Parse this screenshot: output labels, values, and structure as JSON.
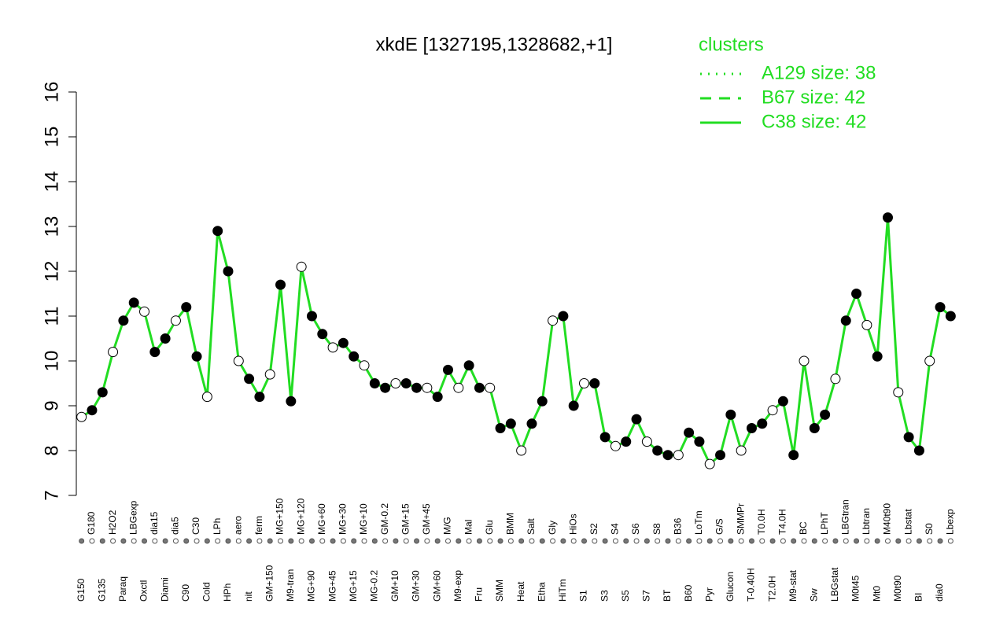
{
  "chart_data": {
    "type": "line",
    "title": "xkdE [1327195,1328682,+1]",
    "categories": [
      "G150",
      "G180",
      "G135",
      "H2O2",
      "Paraq",
      "LBGexp",
      "Oxctl",
      "dia15",
      "Diami",
      "dia5",
      "C90",
      "C30",
      "Cold",
      "LPh",
      "HPh",
      "aero",
      "nit",
      "ferm",
      "GM+150",
      "MG+150",
      "M9-tran",
      "MG+120",
      "MG+90",
      "MG+60",
      "MG+45",
      "MG+30",
      "MG+15",
      "MG+10",
      "MG-0.2",
      "GM-0.2",
      "GM+10",
      "GM+15",
      "GM+30",
      "GM+45",
      "GM+60",
      "M/G",
      "M9-exp",
      "Mal",
      "Fru",
      "Glu",
      "SMM",
      "BMM",
      "Heat",
      "Salt",
      "Etha",
      "Gly",
      "HiTm",
      "HiOs",
      "S1",
      "S2",
      "S3",
      "S4",
      "S5",
      "S6",
      "S7",
      "S8",
      "BT",
      "B36",
      "B60",
      "LoTm",
      "Pyr",
      "G/S",
      "Glucon",
      "SMMPr",
      "T-0.40H",
      "T0.0H",
      "T2.0H",
      "T4.0H",
      "M9-stat",
      "BC",
      "Sw",
      "LPhT",
      "LBGstat",
      "LBGtran",
      "M0t45",
      "Lbtran",
      "Mt0",
      "M40t90",
      "M0t90",
      "Lbstat",
      "BI",
      "S0",
      "dia0",
      "Lbexp"
    ],
    "series": [
      {
        "name": "C38 size: 42",
        "color": "#22dd22",
        "values": [
          8.75,
          8.9,
          9.3,
          10.2,
          10.9,
          11.3,
          11.1,
          10.2,
          10.5,
          10.9,
          11.2,
          10.1,
          9.2,
          12.9,
          12.0,
          10.0,
          9.6,
          9.2,
          9.7,
          11.7,
          9.1,
          12.1,
          11.0,
          10.6,
          10.3,
          10.4,
          10.1,
          9.9,
          9.5,
          9.4,
          9.5,
          9.5,
          9.4,
          9.4,
          9.2,
          9.8,
          9.4,
          9.9,
          9.4,
          9.4,
          8.5,
          8.6,
          8.0,
          8.6,
          9.1,
          10.9,
          11.0,
          9.0,
          9.5,
          9.5,
          8.3,
          8.1,
          8.2,
          8.7,
          8.2,
          8.0,
          7.9,
          7.9,
          8.4,
          8.2,
          7.7,
          7.9,
          8.8,
          8.0,
          8.5,
          8.6,
          8.9,
          9.1,
          7.9,
          10.0,
          8.5,
          8.8,
          9.6,
          10.9,
          11.5,
          10.8,
          10.1,
          13.2,
          9.3,
          8.3,
          8.0,
          10.0,
          11.2,
          11.0
        ]
      }
    ],
    "ylim": [
      7,
      16
    ],
    "yticks": [
      7,
      8,
      9,
      10,
      11,
      12,
      13,
      14,
      15,
      16
    ],
    "legend": {
      "title": "clusters",
      "entries": [
        {
          "label": "A129 size: 38",
          "style": "dotted"
        },
        {
          "label": "B67 size: 42",
          "style": "dashed"
        },
        {
          "label": "C38 size: 42",
          "style": "solid"
        }
      ]
    }
  }
}
